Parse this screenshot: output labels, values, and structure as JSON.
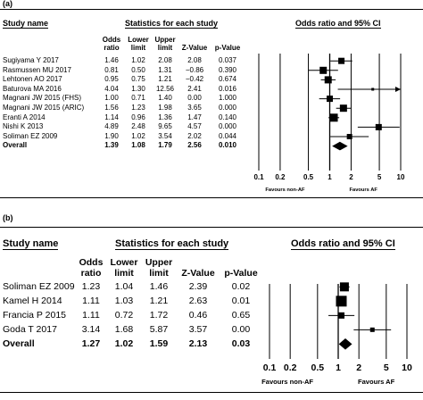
{
  "chart_data": [
    {
      "type": "forest",
      "panel_label": "(a)",
      "header": {
        "study_col": "Study name",
        "stats_title": "Statistics for each study",
        "plot_title": "Odds ratio and 95% CI",
        "col_or": [
          "Odds",
          "ratio"
        ],
        "col_lower": [
          "Lower",
          "limit"
        ],
        "col_upper": [
          "Upper",
          "limit"
        ],
        "col_z": "Z-Value",
        "col_p": "p-Value"
      },
      "rows": [
        {
          "study": "Sugiyama Y 2017",
          "or": "1.46",
          "lower": "1.02",
          "upper": "2.08",
          "z": "2.08",
          "p": "0.037",
          "or_v": 1.46,
          "lo_v": 1.02,
          "hi_v": 2.08
        },
        {
          "study": "Rasmussen MU 2017",
          "or": "0.81",
          "lower": "0.50",
          "upper": "1.31",
          "z": "−0.86",
          "p": "0.390",
          "or_v": 0.81,
          "lo_v": 0.5,
          "hi_v": 1.31
        },
        {
          "study": "Lehtonen AO 2017",
          "or": "0.95",
          "lower": "0.75",
          "upper": "1.21",
          "z": "−0.42",
          "p": "0.674",
          "or_v": 0.95,
          "lo_v": 0.75,
          "hi_v": 1.21
        },
        {
          "study": "Baturova MA 2016",
          "or": "4.04",
          "lower": "1.30",
          "upper": "12.56",
          "z": "2.41",
          "p": "0.016",
          "or_v": 4.04,
          "lo_v": 1.3,
          "hi_v": 12.56
        },
        {
          "study": "Magnani JW 2015 (FHS)",
          "or": "1.00",
          "lower": "0.71",
          "upper": "1.40",
          "z": "0.00",
          "p": "1.000",
          "or_v": 1.0,
          "lo_v": 0.71,
          "hi_v": 1.4
        },
        {
          "study": "Magnani JW 2015 (ARIC)",
          "or": "1.56",
          "lower": "1.23",
          "upper": "1.98",
          "z": "3.65",
          "p": "0.000",
          "or_v": 1.56,
          "lo_v": 1.23,
          "hi_v": 1.98
        },
        {
          "study": "Eranti A 2014",
          "or": "1.14",
          "lower": "0.96",
          "upper": "1.36",
          "z": "1.47",
          "p": "0.140",
          "or_v": 1.14,
          "lo_v": 0.96,
          "hi_v": 1.36
        },
        {
          "study": "Nishi K 2013",
          "or": "4.89",
          "lower": "2.48",
          "upper": "9.65",
          "z": "4.57",
          "p": "0.000",
          "or_v": 4.89,
          "lo_v": 2.48,
          "hi_v": 9.65
        },
        {
          "study": "Soliman EZ 2009",
          "or": "1.90",
          "lower": "1.02",
          "upper": "3.54",
          "z": "2.02",
          "p": "0.044",
          "or_v": 1.9,
          "lo_v": 1.02,
          "hi_v": 3.54
        }
      ],
      "overall": {
        "study": "Overall",
        "or": "1.39",
        "lower": "1.08",
        "upper": "1.79",
        "z": "2.56",
        "p": "0.010",
        "or_v": 1.39,
        "lo_v": 1.08,
        "hi_v": 1.79
      },
      "x_scale": "log",
      "xlim": [
        0.1,
        10
      ],
      "ticks": [
        {
          "v": 0.1,
          "label": "0.1"
        },
        {
          "v": 0.2,
          "label": "0.2"
        },
        {
          "v": 0.5,
          "label": "0.5"
        },
        {
          "v": 1,
          "label": "1"
        },
        {
          "v": 2,
          "label": "2"
        },
        {
          "v": 5,
          "label": "5"
        },
        {
          "v": 10,
          "label": "10"
        }
      ],
      "favours_left": "Favours non-AF",
      "favours_right": "Favours AF"
    },
    {
      "type": "forest",
      "panel_label": "(b)",
      "header": {
        "study_col": "Study name",
        "stats_title": "Statistics for each study",
        "plot_title": "Odds ratio and 95% CI",
        "col_or": [
          "Odds",
          "ratio"
        ],
        "col_lower": [
          "Lower",
          "limit"
        ],
        "col_upper": [
          "Upper",
          "limit"
        ],
        "col_z": "Z-Value",
        "col_p": "p-Value"
      },
      "rows": [
        {
          "study": "Soliman EZ 2009",
          "or": "1.23",
          "lower": "1.04",
          "upper": "1.46",
          "z": "2.39",
          "p": "0.02",
          "or_v": 1.23,
          "lo_v": 1.04,
          "hi_v": 1.46
        },
        {
          "study": "Kamel H 2014",
          "or": "1.11",
          "lower": "1.03",
          "upper": "1.21",
          "z": "2.63",
          "p": "0.01",
          "or_v": 1.11,
          "lo_v": 1.03,
          "hi_v": 1.21
        },
        {
          "study": "Francia P 2015",
          "or": "1.11",
          "lower": "0.72",
          "upper": "1.72",
          "z": "0.46",
          "p": "0.65",
          "or_v": 1.11,
          "lo_v": 0.72,
          "hi_v": 1.72
        },
        {
          "study": "Goda T 2017",
          "or": "3.14",
          "lower": "1.68",
          "upper": "5.87",
          "z": "3.57",
          "p": "0.00",
          "or_v": 3.14,
          "lo_v": 1.68,
          "hi_v": 5.87
        }
      ],
      "overall": {
        "study": "Overall",
        "or": "1.27",
        "lower": "1.02",
        "upper": "1.59",
        "z": "2.13",
        "p": "0.03",
        "or_v": 1.27,
        "lo_v": 1.02,
        "hi_v": 1.59
      },
      "x_scale": "log",
      "xlim": [
        0.1,
        10
      ],
      "ticks": [
        {
          "v": 0.1,
          "label": "0.1"
        },
        {
          "v": 0.2,
          "label": "0.2"
        },
        {
          "v": 0.5,
          "label": "0.5"
        },
        {
          "v": 1,
          "label": "1"
        },
        {
          "v": 2,
          "label": "2"
        },
        {
          "v": 5,
          "label": "5"
        },
        {
          "v": 10,
          "label": "10"
        }
      ],
      "favours_left": "Favours non-AF",
      "favours_right": "Favours AF"
    }
  ]
}
